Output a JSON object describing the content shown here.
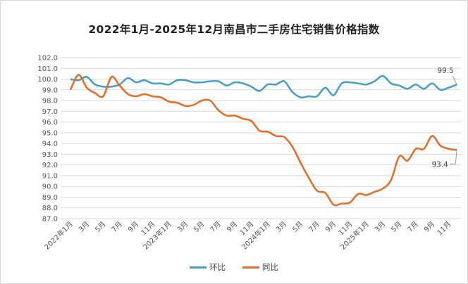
{
  "chart_data": {
    "type": "line",
    "title": "2022年1月-2025年12月南昌市二手房住宅销售价格指数",
    "ylim": [
      87.0,
      102.0
    ],
    "y_ticks": [
      "87.0",
      "88.0",
      "89.0",
      "90.0",
      "91.0",
      "92.0",
      "93.0",
      "94.0",
      "95.0",
      "96.0",
      "97.0",
      "98.0",
      "99.0",
      "100.0",
      "101.0",
      "102.0"
    ],
    "x_tick_labels": [
      "2022年1月",
      "3月",
      "5月",
      "7月",
      "9月",
      "11月",
      "2023年1月",
      "3月",
      "5月",
      "7月",
      "9月",
      "11月",
      "2024年1月",
      "3月",
      "5月",
      "7月",
      "9月",
      "11月",
      "2025年1月",
      "3月",
      "5月",
      "7月",
      "9月",
      "11月"
    ],
    "grid": true,
    "legend_position": "bottom",
    "series": [
      {
        "name": "环比",
        "color": "#4a9fc8",
        "values": [
          100.0,
          99.9,
          100.2,
          99.5,
          99.3,
          99.3,
          99.5,
          100.1,
          99.7,
          99.9,
          99.6,
          99.6,
          99.5,
          99.9,
          99.9,
          99.7,
          99.7,
          99.8,
          99.8,
          99.4,
          99.7,
          99.6,
          99.3,
          98.9,
          99.5,
          99.5,
          99.8,
          98.8,
          98.3,
          98.4,
          98.4,
          99.2,
          98.5,
          99.6,
          99.7,
          99.6,
          99.5,
          99.8,
          100.3,
          99.6,
          99.4,
          99.1,
          99.5,
          99.1,
          99.6,
          99.0,
          99.2,
          99.5
        ],
        "end_label": "99.5"
      },
      {
        "name": "同比",
        "color": "#e36f2c",
        "values": [
          99.0,
          100.4,
          99.2,
          98.7,
          98.4,
          100.2,
          99.4,
          98.6,
          98.4,
          98.6,
          98.4,
          98.3,
          97.9,
          97.8,
          97.5,
          97.6,
          98.0,
          98.0,
          97.1,
          96.6,
          96.6,
          96.3,
          96.1,
          95.2,
          95.1,
          94.7,
          94.6,
          93.7,
          92.2,
          90.8,
          89.6,
          89.4,
          88.3,
          88.4,
          88.5,
          89.3,
          89.2,
          89.5,
          89.8,
          90.6,
          92.8,
          92.4,
          93.5,
          93.5,
          94.7,
          93.8,
          93.5,
          93.4
        ],
        "end_label": "93.4"
      }
    ]
  }
}
